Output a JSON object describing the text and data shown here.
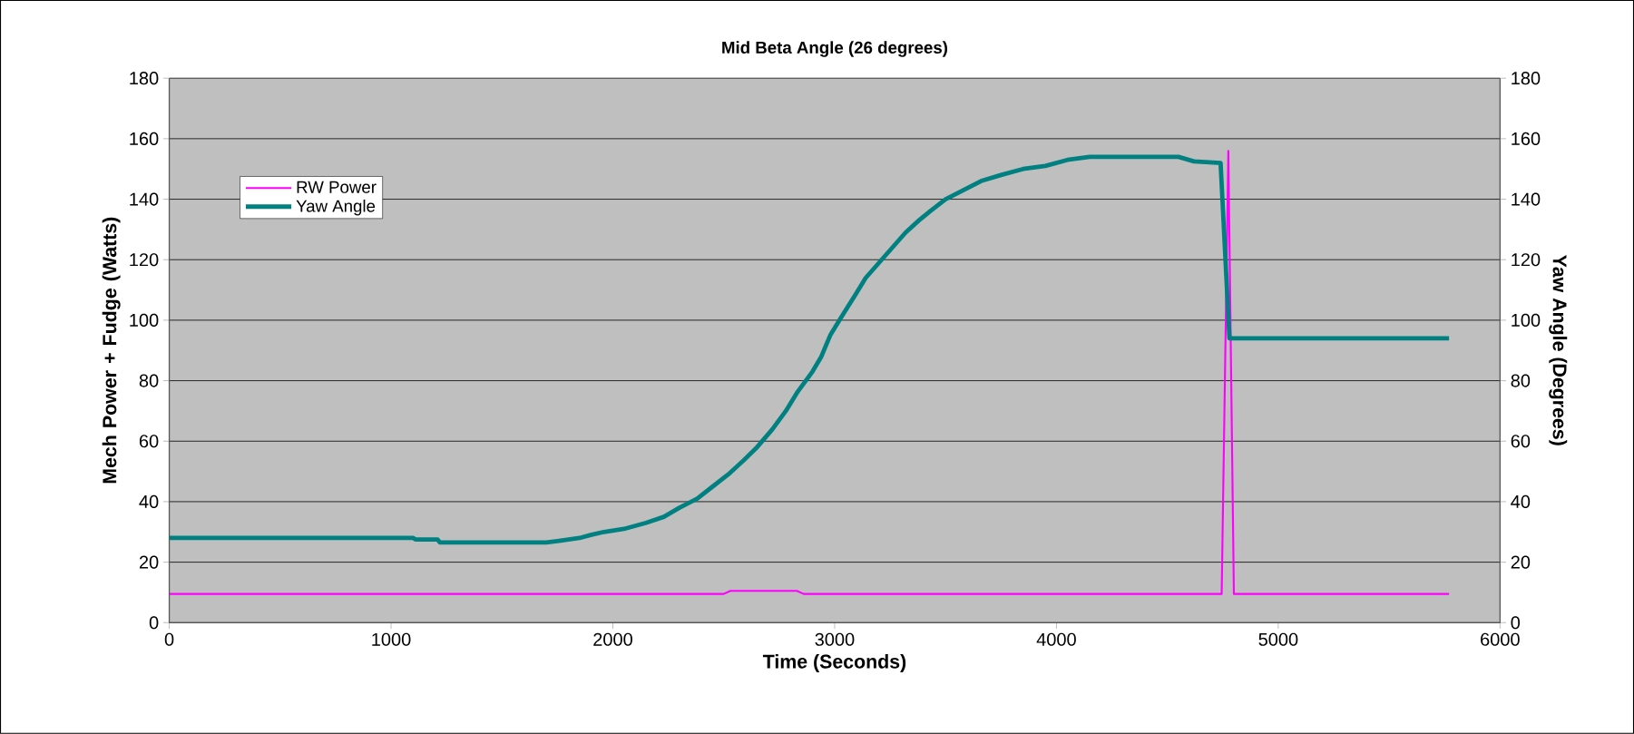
{
  "chart_data": {
    "type": "line",
    "title": "Mid Beta Angle (26 degrees)",
    "xlabel": "Time (Seconds)",
    "ylabel": "Mech Power + Fudge (Watts)",
    "y2label": "Yaw Angle (Degrees)",
    "xlim": [
      0,
      6000
    ],
    "xticks": [
      0,
      1000,
      2000,
      3000,
      4000,
      5000,
      6000
    ],
    "ylim": [
      0,
      180
    ],
    "yticks": [
      0,
      20,
      40,
      60,
      80,
      100,
      120,
      140,
      160,
      180
    ],
    "y2lim": [
      0,
      180
    ],
    "y2ticks": [
      0,
      20,
      40,
      60,
      80,
      100,
      120,
      140,
      160,
      180
    ],
    "grid": "y",
    "legend": "top left",
    "marker": "none",
    "line_style": "solid",
    "series": [
      {
        "name": "RW Power",
        "color": "#ff00ff",
        "x": [
          0,
          2500,
          2530,
          2830,
          2860,
          4745,
          4775,
          4800,
          5770
        ],
        "values": [
          9.5,
          9.5,
          10.5,
          10.5,
          9.5,
          9.5,
          156,
          9.5,
          9.5
        ]
      },
      {
        "name": "Yaw Angle",
        "color": "#008080",
        "axis": "y2",
        "x": [
          0,
          1100,
          1110,
          1210,
          1220,
          1700,
          1750,
          1850,
          1900,
          1960,
          2050,
          2150,
          2230,
          2300,
          2380,
          2450,
          2520,
          2580,
          2650,
          2720,
          2780,
          2830,
          2900,
          2940,
          2980,
          3030,
          3090,
          3140,
          3200,
          3260,
          3320,
          3380,
          3430,
          3500,
          3580,
          3660,
          3750,
          3850,
          3950,
          4050,
          4150,
          4550,
          4620,
          4740,
          4780,
          5770
        ],
        "values": [
          28,
          28,
          27.5,
          27.5,
          26.5,
          26.5,
          27,
          28,
          29,
          30,
          31,
          33,
          35,
          38,
          41,
          45,
          49,
          53,
          58,
          64,
          70,
          76,
          83,
          88,
          95,
          101,
          108,
          114,
          119,
          124,
          129,
          133,
          136,
          140,
          143,
          146,
          148,
          150,
          151,
          153,
          154,
          154,
          152.5,
          152,
          94,
          94
        ]
      }
    ]
  }
}
